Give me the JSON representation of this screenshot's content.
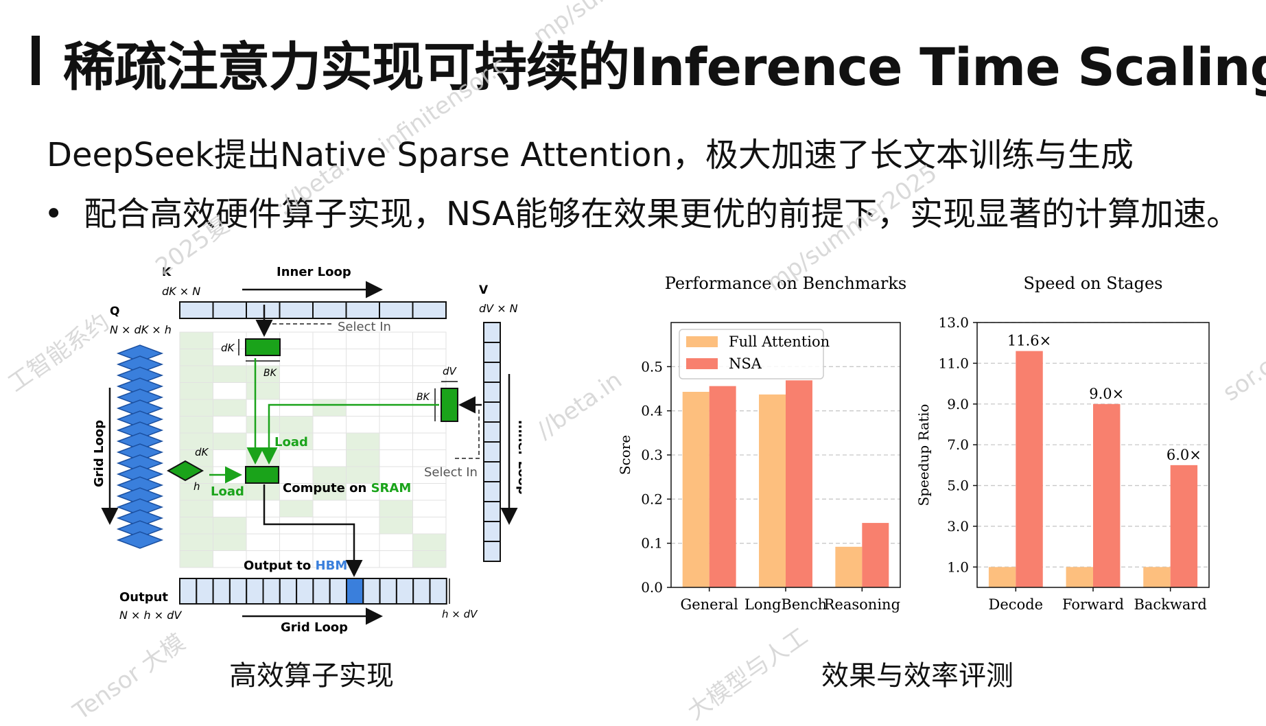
{
  "slide": {
    "title": "稀疏注意力实现可持续的Inference Time Scaling",
    "subtitle": "DeepSeek提出Native Sparse Attention，极大加速了长文本训练与生成",
    "bullet_marker": "•",
    "bullet": "配合高效硬件算子实现，NSA能够在效果更优的前提下，实现显著的计算加速。",
    "left_caption": "高效算子实现",
    "right_caption": "效果与效率评测"
  },
  "diagram": {
    "k_label": "K",
    "k_dims": "dK × N",
    "inner_loop_top": "Inner Loop",
    "v_label": "V",
    "v_dims": "dV × N",
    "q_label": "Q",
    "q_dims": "N × dK × h",
    "select_in_top": "Select In",
    "dk_label": "dK",
    "bk_label": "BK",
    "dv_label": "dV",
    "bk_label2": "BK",
    "load_top": "Load",
    "grid_loop_side": "Grid Loop",
    "dk_label_q": "dK",
    "h_label": "h",
    "load_left": "Load",
    "compute_label": "Compute on ",
    "sram_label": "SRAM",
    "select_in_right": "Select In",
    "inner_loop_side": "Inner Loop",
    "output_to_label": "Output to ",
    "hbm_label": "HBM",
    "output_label": "Output",
    "output_dims": "N × h × dV",
    "output_dims_right": "h × dV",
    "grid_loop_bottom": "Grid Loop"
  },
  "chart_data": [
    {
      "type": "bar",
      "title": "Performance on Benchmarks",
      "xlabel": "",
      "ylabel": "Score",
      "categories": [
        "General",
        "LongBench",
        "Reasoning"
      ],
      "series": [
        {
          "name": "Full Attention",
          "color": "#fdbf7e",
          "values": [
            0.443,
            0.437,
            0.092
          ]
        },
        {
          "name": "NSA",
          "color": "#f8806e",
          "values": [
            0.456,
            0.469,
            0.146
          ]
        }
      ],
      "ylim": [
        0.0,
        0.6
      ],
      "yticks": [
        0.0,
        0.1,
        0.2,
        0.3,
        0.4,
        0.5
      ],
      "ytick_labels": [
        "0.0",
        "0.1",
        "0.2",
        "0.3",
        "0.4",
        "0.5"
      ],
      "grid": true,
      "legend": "top-left"
    },
    {
      "type": "bar",
      "title": "Speed on Stages",
      "xlabel": "",
      "ylabel": "Speedup Ratio",
      "categories": [
        "Decode",
        "Forward",
        "Backward"
      ],
      "series": [
        {
          "color": "#fdbf7e",
          "values": [
            1.0,
            1.0,
            1.0
          ]
        },
        {
          "color": "#f8806e",
          "values": [
            11.6,
            9.0,
            6.0
          ]
        }
      ],
      "data_labels": [
        "11.6×",
        "9.0×",
        "6.0×"
      ],
      "ylim": [
        0.0,
        13.0
      ],
      "yticks": [
        1.0,
        3.0,
        5.0,
        7.0,
        9.0,
        11.0,
        13.0
      ],
      "ytick_labels": [
        "1.0",
        "3.0",
        "5.0",
        "7.0",
        "9.0",
        "11.0",
        "13.0"
      ],
      "grid": true,
      "legend": "none"
    }
  ],
  "watermarks": [
    "mp/sum",
    "infinitensor.c",
    "://beta.",
    "2025夏",
    "工智能系约",
    "//beta.in",
    "mp/summer2025",
    "sor.c",
    "Tensor 大模",
    "大模型与人工"
  ],
  "colors": {
    "green": "#1aa31a",
    "light_blue": "#d9e6f7",
    "blue": "#3a7fdc",
    "cell_green": "#e4f1df",
    "full_attention": "#fdbf7e",
    "nsa": "#f8806e"
  }
}
